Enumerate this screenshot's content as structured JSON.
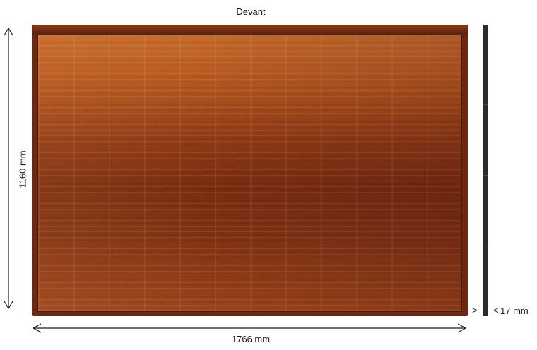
{
  "figure": {
    "title": "Devant",
    "dimensions": {
      "width_label": "1766 mm",
      "height_label": "1160 mm",
      "thickness_label": "17 mm",
      "thickness_arrow_left": ">",
      "thickness_arrow_right": "<"
    }
  },
  "colors": {
    "panel_surface_top": "#c56a2c",
    "panel_surface_middle": "#7a2c10",
    "panel_frame": "#6b2a10",
    "edge_bar": "#2b2b2b",
    "dimension_lines": "#1a1a1a"
  }
}
